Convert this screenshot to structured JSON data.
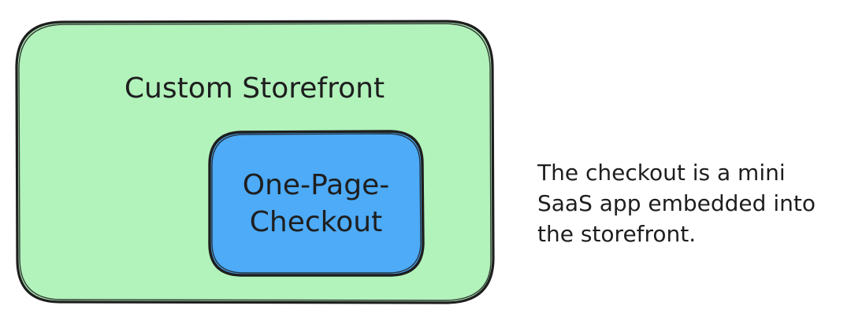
{
  "colors": {
    "storefront_fill": "#b2f2bb",
    "checkout_fill": "#4dabf7",
    "stroke": "#1e1e1e",
    "text": "#1e1e1e",
    "background": "#ffffff"
  },
  "storefront": {
    "label": "Custom Storefront"
  },
  "checkout": {
    "label_line1": "One-Page-",
    "label_line2": "Checkout"
  },
  "note": {
    "line1": "The checkout is a mini",
    "line2": "SaaS app embedded into",
    "line3": "the storefront."
  }
}
